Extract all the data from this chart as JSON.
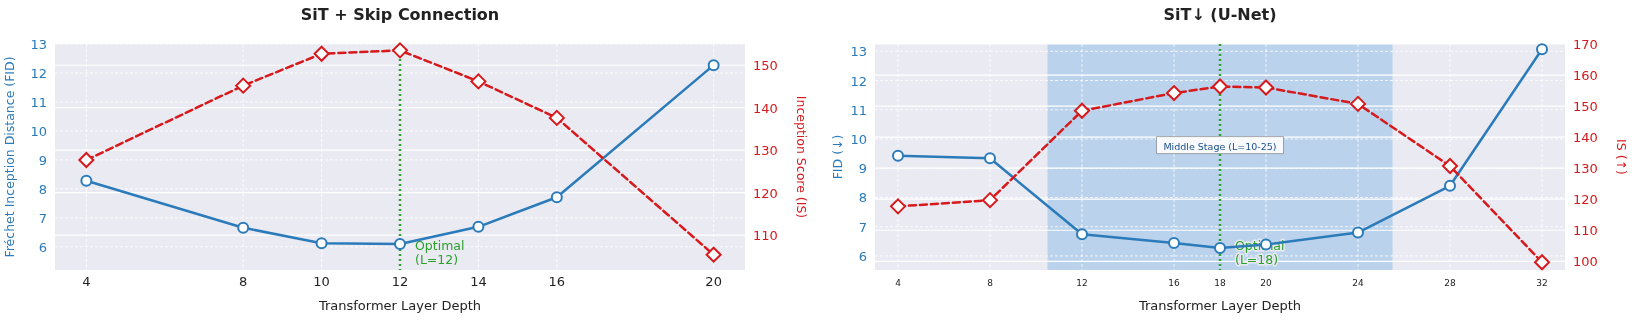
{
  "chart_data": [
    {
      "type": "line",
      "title": "SiT + Skip Connection",
      "xlabel": "Transformer Layer Depth",
      "ylabel": "Fréchet Inception Distance (FID)",
      "y2label": "Inception Score (IS)",
      "x": [
        4,
        8,
        10,
        12,
        14,
        16,
        20
      ],
      "xlim": [
        3.2,
        20.8
      ],
      "xticks": [
        4,
        8,
        10,
        12,
        14,
        16,
        20
      ],
      "ylim": [
        5.2,
        13
      ],
      "yticks": [
        6,
        7,
        8,
        9,
        10,
        11,
        12,
        13
      ],
      "y2lim": [
        101.8,
        155
      ],
      "y2ticks": [
        110,
        120,
        130,
        140,
        150
      ],
      "grid": true,
      "series": [
        {
          "color": "#2b7bba",
          "values": [
            8.28,
            6.66,
            6.12,
            6.1,
            6.69,
            7.71,
            12.27
          ],
          "marker": "circle",
          "line_style": "solid"
        },
        {
          "color": "#d7191c",
          "values": [
            127.7,
            145.2,
            152.7,
            153.5,
            146.2,
            137.6,
            105.4
          ],
          "axis": "y2",
          "marker": "diamond",
          "line_style": "dashed"
        }
      ],
      "ref_lines": [
        {
          "axis": "x",
          "value": 12,
          "label": "Optimal\n(L=12)",
          "color": "#2ca02c",
          "line_style": "dotted"
        }
      ]
    },
    {
      "type": "line",
      "title": "SiT↓ (U-Net)",
      "xlabel": "Transformer Layer Depth",
      "ylabel": "FID (↓)",
      "y2label": "IS (↑)",
      "x": [
        4,
        8,
        12,
        16,
        18,
        20,
        24,
        28,
        32
      ],
      "xlim": [
        3,
        33
      ],
      "xticks": [
        4,
        8,
        12,
        16,
        18,
        20,
        24,
        28,
        32
      ],
      "ylim": [
        5.52,
        13.25
      ],
      "yticks": [
        6,
        7,
        8,
        9,
        10,
        11,
        12,
        13
      ],
      "y2lim": [
        97.2,
        170
      ],
      "y2ticks": [
        100,
        110,
        120,
        130,
        140,
        150,
        160,
        170
      ],
      "grid": true,
      "series": [
        {
          "color": "#2b7bba",
          "values": [
            9.43,
            9.34,
            6.74,
            6.44,
            6.27,
            6.39,
            6.8,
            8.4,
            13.07
          ],
          "marker": "circle",
          "line_style": "solid"
        },
        {
          "color": "#d7191c",
          "values": [
            117.7,
            119.7,
            148.5,
            154.2,
            156.3,
            156,
            150.7,
            130.7,
            99.7
          ],
          "axis": "y2",
          "marker": "diamond",
          "line_style": "dashed"
        }
      ],
      "ref_lines": [
        {
          "axis": "x",
          "value": 18,
          "label": "Optimal\n(L=18)",
          "color": "#2ca02c",
          "line_style": "dotted"
        }
      ],
      "bands": [
        {
          "axis": "x",
          "from": 10.5,
          "to": 25.5,
          "label": "Middle Stage (L=10-25)",
          "color": "#a9c9e8"
        }
      ]
    }
  ]
}
